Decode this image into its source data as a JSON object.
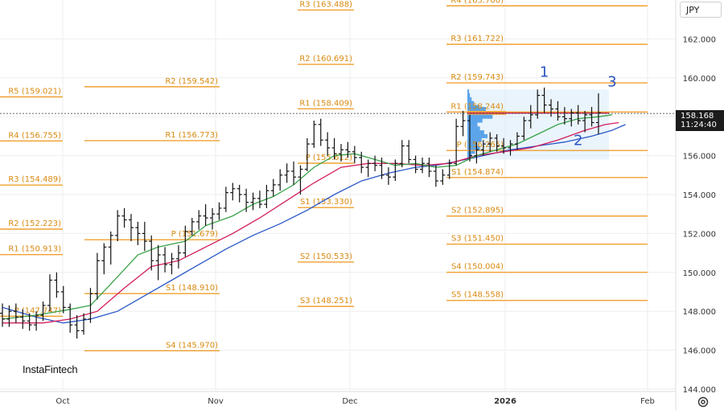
{
  "currency": "JPY",
  "brand": "InstaFintech",
  "current_price": "158.168",
  "current_time": "11:24:40",
  "colors": {
    "level": "#f0a030",
    "label": "#d98a10",
    "candle": "#111111",
    "sma_fast": "#3aa34a",
    "sma_mid": "#d21d5b",
    "sma_slow": "#2a58c7",
    "profile_bar": "#4c9be8",
    "profile_highlight": "#f0a030",
    "profile_box": "#d8ebfa",
    "wave": "#2a55c0"
  },
  "chart_data": {
    "type": "candlestick",
    "ylim": [
      143.8,
      164.2
    ],
    "y_ticks": [
      "144.000",
      "146.000",
      "148.000",
      "150.000",
      "152.000",
      "154.000",
      "156.000",
      "158.000",
      "160.000",
      "162.000"
    ],
    "x_ticks": [
      "Oct",
      "Nov",
      "Dec",
      "2026",
      "Feb"
    ],
    "x_tick_bold": "2026",
    "current_price_value": 158.168,
    "ohlc": [
      [
        147.9,
        148.4,
        147.2,
        147.6
      ],
      [
        147.6,
        148.3,
        147.2,
        148.0
      ],
      [
        148.0,
        148.4,
        147.4,
        147.7
      ],
      [
        147.7,
        148.1,
        147.1,
        147.5
      ],
      [
        147.5,
        147.9,
        147.0,
        147.3
      ],
      [
        147.3,
        148.0,
        147.0,
        147.8
      ],
      [
        147.8,
        148.5,
        147.5,
        148.3
      ],
      [
        148.3,
        149.9,
        148.0,
        149.6
      ],
      [
        149.6,
        150.0,
        148.7,
        149.0
      ],
      [
        149.0,
        149.3,
        147.9,
        148.2
      ],
      [
        148.2,
        148.4,
        146.9,
        147.3
      ],
      [
        147.3,
        147.8,
        146.6,
        147.0
      ],
      [
        147.0,
        147.9,
        146.8,
        147.6
      ],
      [
        147.6,
        149.2,
        147.4,
        148.9
      ],
      [
        148.9,
        151.0,
        148.6,
        150.6
      ],
      [
        150.6,
        151.5,
        149.9,
        151.3
      ],
      [
        151.3,
        152.1,
        150.4,
        151.9
      ],
      [
        151.9,
        153.2,
        151.6,
        152.9
      ],
      [
        152.9,
        153.3,
        152.3,
        152.7
      ],
      [
        152.7,
        153.0,
        151.6,
        152.3
      ],
      [
        152.3,
        152.6,
        151.4,
        152.0
      ],
      [
        152.0,
        152.6,
        151.1,
        151.6
      ],
      [
        151.6,
        151.9,
        150.1,
        150.6
      ],
      [
        150.6,
        151.4,
        149.6,
        150.9
      ],
      [
        150.9,
        151.3,
        150.0,
        150.4
      ],
      [
        150.4,
        151.0,
        149.9,
        150.7
      ],
      [
        150.7,
        151.4,
        150.2,
        151.0
      ],
      [
        151.0,
        152.4,
        150.8,
        152.1
      ],
      [
        152.1,
        152.8,
        151.9,
        152.6
      ],
      [
        152.6,
        153.2,
        152.2,
        152.9
      ],
      [
        152.9,
        153.5,
        152.4,
        152.8
      ],
      [
        152.8,
        153.3,
        152.2,
        153.0
      ],
      [
        153.0,
        153.6,
        152.7,
        153.3
      ],
      [
        153.3,
        154.4,
        153.1,
        154.1
      ],
      [
        154.1,
        154.6,
        153.7,
        154.3
      ],
      [
        154.3,
        154.5,
        153.6,
        154.0
      ],
      [
        154.0,
        154.3,
        153.1,
        153.6
      ],
      [
        153.6,
        154.1,
        153.2,
        153.8
      ],
      [
        153.8,
        154.2,
        153.3,
        153.5
      ],
      [
        153.5,
        154.5,
        153.3,
        154.2
      ],
      [
        154.2,
        154.8,
        153.9,
        154.5
      ],
      [
        154.5,
        155.3,
        154.2,
        155.0
      ],
      [
        155.0,
        155.6,
        154.6,
        155.2
      ],
      [
        155.2,
        155.7,
        154.5,
        154.9
      ],
      [
        154.9,
        155.5,
        154.0,
        155.3
      ],
      [
        155.3,
        156.9,
        155.2,
        156.6
      ],
      [
        156.6,
        157.8,
        156.4,
        157.6
      ],
      [
        157.6,
        157.9,
        156.5,
        156.8
      ],
      [
        156.8,
        157.2,
        156.0,
        156.4
      ],
      [
        156.4,
        156.9,
        155.8,
        156.1
      ],
      [
        156.1,
        156.6,
        155.7,
        156.3
      ],
      [
        156.3,
        156.7,
        155.9,
        156.2
      ],
      [
        156.2,
        156.5,
        155.6,
        155.9
      ],
      [
        155.9,
        156.2,
        155.1,
        155.4
      ],
      [
        155.4,
        155.8,
        154.9,
        155.6
      ],
      [
        155.6,
        156.0,
        155.2,
        155.5
      ],
      [
        155.5,
        155.9,
        154.8,
        155.0
      ],
      [
        155.0,
        155.4,
        154.5,
        154.9
      ],
      [
        154.9,
        155.8,
        154.7,
        155.6
      ],
      [
        155.6,
        156.8,
        155.4,
        156.5
      ],
      [
        156.5,
        156.8,
        155.6,
        155.8
      ],
      [
        155.8,
        156.0,
        155.1,
        155.3
      ],
      [
        155.3,
        155.9,
        155.1,
        155.6
      ],
      [
        155.6,
        155.9,
        154.9,
        155.2
      ],
      [
        155.2,
        155.5,
        154.4,
        154.7
      ],
      [
        154.7,
        155.3,
        154.5,
        155.0
      ],
      [
        155.0,
        155.8,
        154.8,
        155.6
      ],
      [
        155.6,
        157.9,
        155.5,
        157.5
      ],
      [
        157.5,
        158.3,
        157.0,
        157.8
      ],
      [
        157.8,
        158.1,
        155.7,
        156.0
      ],
      [
        156.0,
        156.7,
        155.6,
        156.3
      ],
      [
        156.3,
        156.8,
        156.0,
        156.6
      ],
      [
        156.6,
        157.2,
        156.2,
        156.9
      ],
      [
        156.9,
        157.1,
        156.2,
        156.5
      ],
      [
        156.5,
        156.9,
        156.1,
        156.4
      ],
      [
        156.4,
        156.8,
        156.0,
        156.6
      ],
      [
        156.6,
        157.2,
        156.3,
        157.0
      ],
      [
        157.0,
        158.0,
        156.8,
        157.8
      ],
      [
        157.8,
        158.6,
        157.4,
        158.1
      ],
      [
        158.1,
        159.4,
        157.9,
        159.1
      ],
      [
        159.1,
        159.5,
        158.2,
        158.6
      ],
      [
        158.6,
        158.9,
        158.0,
        158.4
      ],
      [
        158.4,
        158.8,
        157.8,
        158.0
      ],
      [
        158.0,
        158.5,
        157.6,
        157.9
      ],
      [
        157.9,
        158.4,
        157.5,
        158.2
      ],
      [
        158.2,
        158.6,
        157.6,
        157.8
      ],
      [
        157.8,
        158.3,
        157.2,
        158.1
      ],
      [
        158.1,
        158.5,
        157.5,
        157.7
      ],
      [
        157.7,
        159.2,
        157.1,
        158.2
      ]
    ],
    "sma_fast": [
      [
        0,
        147.6
      ],
      [
        5,
        147.8
      ],
      [
        10,
        148.1
      ],
      [
        13,
        148.3
      ],
      [
        16,
        149.4
      ],
      [
        20,
        150.9
      ],
      [
        23,
        151.3
      ],
      [
        27,
        151.6
      ],
      [
        30,
        152.4
      ],
      [
        34,
        152.9
      ],
      [
        37,
        153.5
      ],
      [
        40,
        153.9
      ],
      [
        43,
        154.5
      ],
      [
        46,
        155.4
      ],
      [
        49,
        156.0
      ],
      [
        52,
        156.1
      ],
      [
        55,
        155.8
      ],
      [
        58,
        155.5
      ],
      [
        61,
        155.6
      ],
      [
        64,
        155.4
      ],
      [
        67,
        155.5
      ],
      [
        70,
        156.0
      ],
      [
        73,
        156.3
      ],
      [
        76,
        156.6
      ],
      [
        79,
        157.1
      ],
      [
        82,
        157.6
      ],
      [
        85,
        157.9
      ],
      [
        88,
        158.0
      ],
      [
        90,
        158.1
      ]
    ],
    "sma_mid": [
      [
        0,
        147.4
      ],
      [
        6,
        147.4
      ],
      [
        10,
        147.6
      ],
      [
        14,
        148.0
      ],
      [
        18,
        149.2
      ],
      [
        22,
        150.3
      ],
      [
        26,
        150.6
      ],
      [
        30,
        151.3
      ],
      [
        34,
        152.0
      ],
      [
        38,
        152.8
      ],
      [
        42,
        153.7
      ],
      [
        46,
        154.6
      ],
      [
        50,
        155.4
      ],
      [
        54,
        155.6
      ],
      [
        58,
        155.6
      ],
      [
        62,
        155.5
      ],
      [
        66,
        155.6
      ],
      [
        70,
        156.0
      ],
      [
        74,
        156.2
      ],
      [
        78,
        156.4
      ],
      [
        82,
        156.8
      ],
      [
        86,
        157.3
      ],
      [
        89,
        157.6
      ],
      [
        91,
        157.7
      ]
    ],
    "sma_slow": [
      [
        0,
        148.2
      ],
      [
        5,
        147.7
      ],
      [
        9,
        147.4
      ],
      [
        13,
        147.6
      ],
      [
        17,
        148.0
      ],
      [
        21,
        148.8
      ],
      [
        25,
        149.6
      ],
      [
        29,
        150.4
      ],
      [
        33,
        151.2
      ],
      [
        37,
        151.9
      ],
      [
        41,
        152.5
      ],
      [
        45,
        153.2
      ],
      [
        49,
        154.0
      ],
      [
        53,
        154.7
      ],
      [
        57,
        155.1
      ],
      [
        61,
        155.4
      ],
      [
        64,
        155.5
      ],
      [
        67,
        155.7
      ],
      [
        71,
        156.0
      ],
      [
        75,
        156.3
      ],
      [
        79,
        156.5
      ],
      [
        83,
        156.7
      ],
      [
        87,
        157.0
      ],
      [
        90,
        157.3
      ],
      [
        92,
        157.6
      ]
    ],
    "pivot_levels": [
      {
        "label": "R5 (159.021)",
        "value": 159.021,
        "period": 0
      },
      {
        "label": "R4 (156.755)",
        "value": 156.755,
        "period": 0
      },
      {
        "label": "R3 (154.489)",
        "value": 154.489,
        "period": 0
      },
      {
        "label": "R2 (152.223)",
        "value": 152.223,
        "period": 0
      },
      {
        "label": "R1 (150.913)",
        "value": 150.913,
        "period": 0
      },
      {
        "label": "P (147.747)",
        "value": 147.747,
        "period": 0
      },
      {
        "label": "R2 (159.542)",
        "value": 159.542,
        "period": 1
      },
      {
        "label": "R1 (156.773)",
        "value": 156.773,
        "period": 1
      },
      {
        "label": "P (151.679)",
        "value": 151.679,
        "period": 1
      },
      {
        "label": "S1 (148.910)",
        "value": 148.91,
        "period": 1
      },
      {
        "label": "S4 (145.970)",
        "value": 145.97,
        "period": 1
      },
      {
        "label": "R3 (163.488)",
        "value": 163.488,
        "period": 2
      },
      {
        "label": "R2 (160.691)",
        "value": 160.691,
        "period": 2
      },
      {
        "label": "R1 (158.409)",
        "value": 158.409,
        "period": 2
      },
      {
        "label": "P (155.612)",
        "value": 155.612,
        "period": 2
      },
      {
        "label": "S1 (153.330)",
        "value": 153.33,
        "period": 2
      },
      {
        "label": "S2 (150.533)",
        "value": 150.533,
        "period": 2
      },
      {
        "label": "S3 (148.251)",
        "value": 148.251,
        "period": 2
      },
      {
        "label": "R4 (163.700)",
        "value": 163.7,
        "period": 3
      },
      {
        "label": "R3 (161.722)",
        "value": 161.722,
        "period": 3
      },
      {
        "label": "R2 (159.743)",
        "value": 159.743,
        "period": 3
      },
      {
        "label": "R1 (158.244)",
        "value": 158.244,
        "period": 3
      },
      {
        "label": "P (156.265)",
        "value": 156.265,
        "period": 3
      },
      {
        "label": "S1 (154.874)",
        "value": 154.874,
        "period": 3
      },
      {
        "label": "S2 (152.895)",
        "value": 152.895,
        "period": 3
      },
      {
        "label": "S3 (151.450)",
        "value": 151.45,
        "period": 3
      },
      {
        "label": "S4 (150.004)",
        "value": 150.004,
        "period": 3
      },
      {
        "label": "S5 (148.558)",
        "value": 148.558,
        "period": 3
      }
    ],
    "volume_profile": {
      "price_from": 155.8,
      "price_to": 159.4,
      "poc_price": 158.2,
      "bins": [
        {
          "price": 159.3,
          "volume": 2
        },
        {
          "price": 159.1,
          "volume": 3
        },
        {
          "price": 158.9,
          "volume": 5
        },
        {
          "price": 158.7,
          "volume": 8
        },
        {
          "price": 158.5,
          "volume": 14
        },
        {
          "price": 158.4,
          "volume": 22
        },
        {
          "price": 158.2,
          "volume": 46
        },
        {
          "price": 158.0,
          "volume": 30
        },
        {
          "price": 157.8,
          "volume": 18
        },
        {
          "price": 157.6,
          "volume": 12
        },
        {
          "price": 157.4,
          "volume": 15
        },
        {
          "price": 157.2,
          "volume": 20
        },
        {
          "price": 157.0,
          "volume": 24
        },
        {
          "price": 156.8,
          "volume": 17
        },
        {
          "price": 156.6,
          "volume": 12
        },
        {
          "price": 156.4,
          "volume": 15
        },
        {
          "price": 156.2,
          "volume": 9
        },
        {
          "price": 156.0,
          "volume": 5
        }
      ]
    },
    "wave_labels": [
      {
        "label": "1",
        "candle": 80,
        "price": 160.05
      },
      {
        "label": "2",
        "candle": 85,
        "price": 156.55
      },
      {
        "label": "3",
        "candle": 90,
        "price": 159.55
      }
    ]
  }
}
